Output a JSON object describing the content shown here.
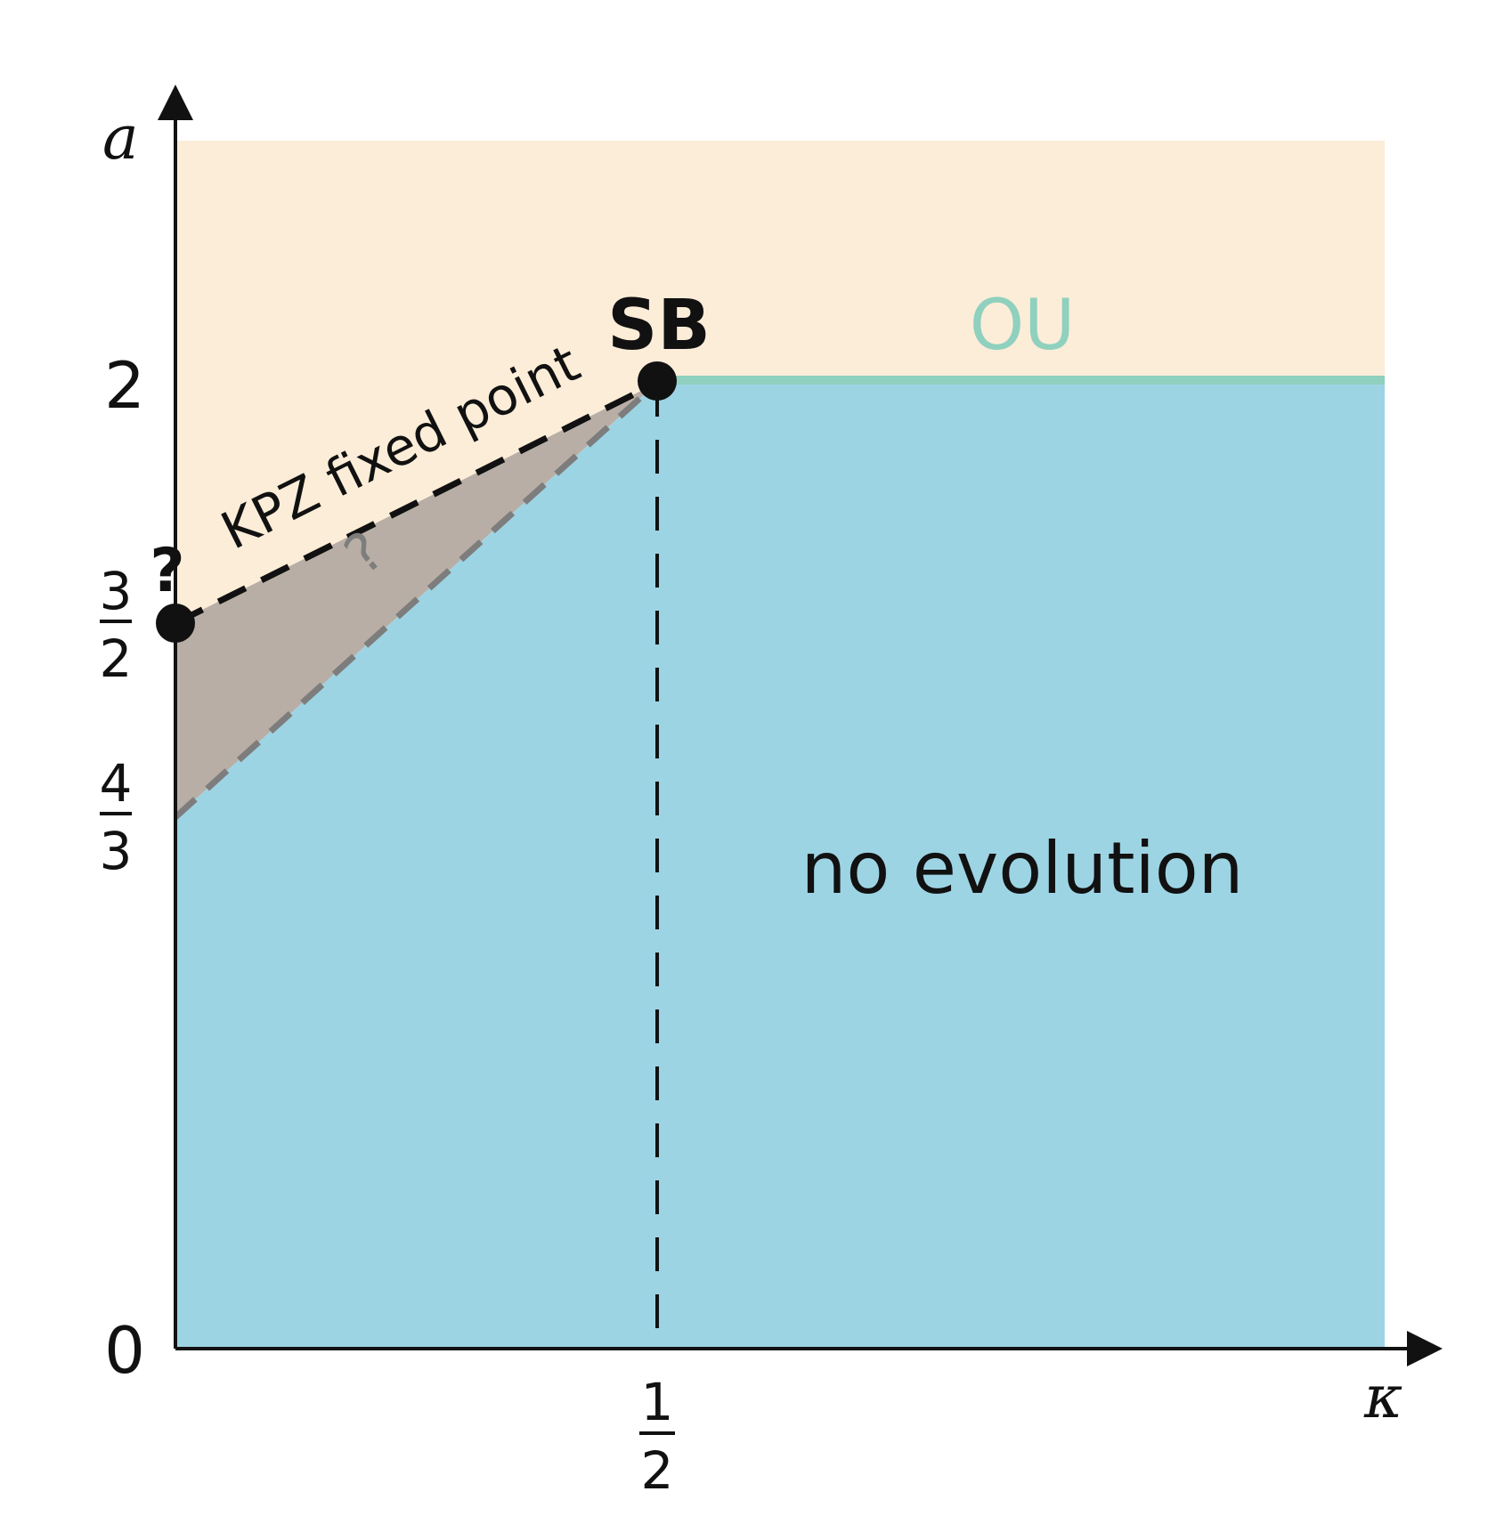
{
  "axes": {
    "x_label": "κ",
    "y_label": "a",
    "x_ticks": [
      {
        "value": 0.5,
        "numerator": "1",
        "denominator": "2"
      }
    ],
    "y_ticks": [
      {
        "value": 0,
        "text": "0"
      },
      {
        "value": 2,
        "text": "2"
      }
    ],
    "y_fraction_ticks": [
      {
        "value": 1.5,
        "numerator": "3",
        "denominator": "2"
      },
      {
        "value": 1.3333,
        "numerator": "4",
        "denominator": "3"
      }
    ]
  },
  "regions": {
    "upper_color": "#FBEDD8",
    "lower_color": "#9DD4E4",
    "uncertain_color": "#B8AEA5",
    "no_evolution_label": "no evolution"
  },
  "lines": {
    "ou_line_color": "#8FD0BE",
    "ou_label": "OU",
    "kpz_label": "KPZ fixed point",
    "kpz_line_color": "#111111",
    "lower_dashed_color": "#7D7D7D"
  },
  "points": {
    "sb_label": "SB",
    "question_mark": "?",
    "uncertain_question": "?"
  }
}
